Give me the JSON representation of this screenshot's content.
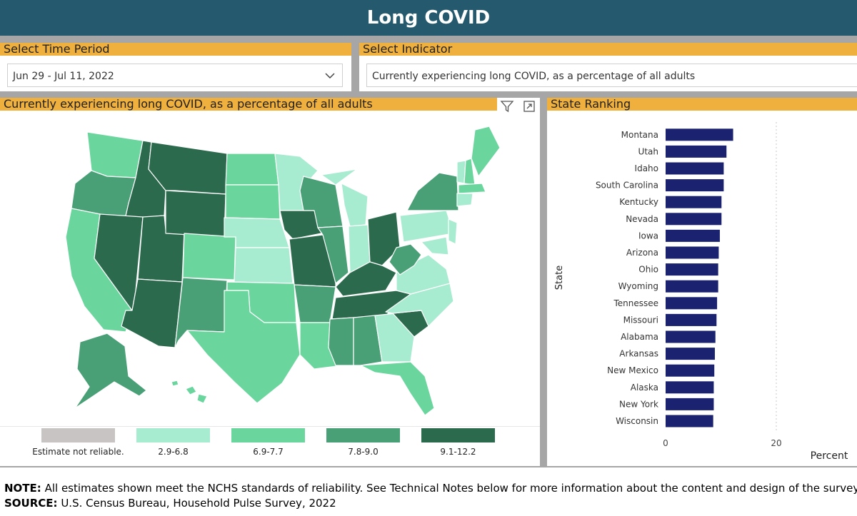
{
  "header": {
    "title": "Long COVID"
  },
  "time_period": {
    "title": "Select Time Period",
    "value": "Jun 29 - Jul 11, 2022"
  },
  "indicator": {
    "title": "Select Indicator",
    "value": "Currently experiencing long COVID, as a percentage of all adults"
  },
  "map_panel": {
    "title": "Currently experiencing long COVID, as a percentage of all adults"
  },
  "ranking_panel": {
    "title": "State Ranking"
  },
  "legend": [
    {
      "label": "Estimate not reliable.",
      "color": "#c8c4c4"
    },
    {
      "label": "2.9-6.8",
      "color": "#a7ebd0"
    },
    {
      "label": "6.9-7.7",
      "color": "#6ad69e"
    },
    {
      "label": "7.8-9.0",
      "color": "#4aa076"
    },
    {
      "label": "9.1-12.2",
      "color": "#2b6a4c"
    }
  ],
  "footer": {
    "note_label": "NOTE:",
    "note_text": "All estimates shown meet the NCHS standards of reliability. See Technical Notes below for more information about the content and design of the survey.",
    "source_label": "SOURCE:",
    "source_text": "U.S. Census Bureau, Household Pulse Survey, 2022"
  },
  "colors": {
    "header_bg": "#255a6e",
    "title_bar": "#f0b03d",
    "bar": "#1b2370"
  },
  "chart_data": {
    "type": "bar",
    "orientation": "horizontal",
    "ylabel": "State",
    "xlabel": "Percent",
    "xlim": [
      0,
      25
    ],
    "xticks": [
      0,
      20
    ],
    "categories": [
      "Montana",
      "Utah",
      "Idaho",
      "South Carolina",
      "Kentucky",
      "Nevada",
      "Iowa",
      "Arizona",
      "Ohio",
      "Wyoming",
      "Tennessee",
      "Missouri",
      "Alabama",
      "Arkansas",
      "New Mexico",
      "Alaska",
      "New York",
      "Wisconsin"
    ],
    "values": [
      12.2,
      11.0,
      10.5,
      10.5,
      10.1,
      10.1,
      9.8,
      9.6,
      9.5,
      9.5,
      9.3,
      9.2,
      9.0,
      8.9,
      8.8,
      8.7,
      8.7,
      8.6
    ]
  }
}
